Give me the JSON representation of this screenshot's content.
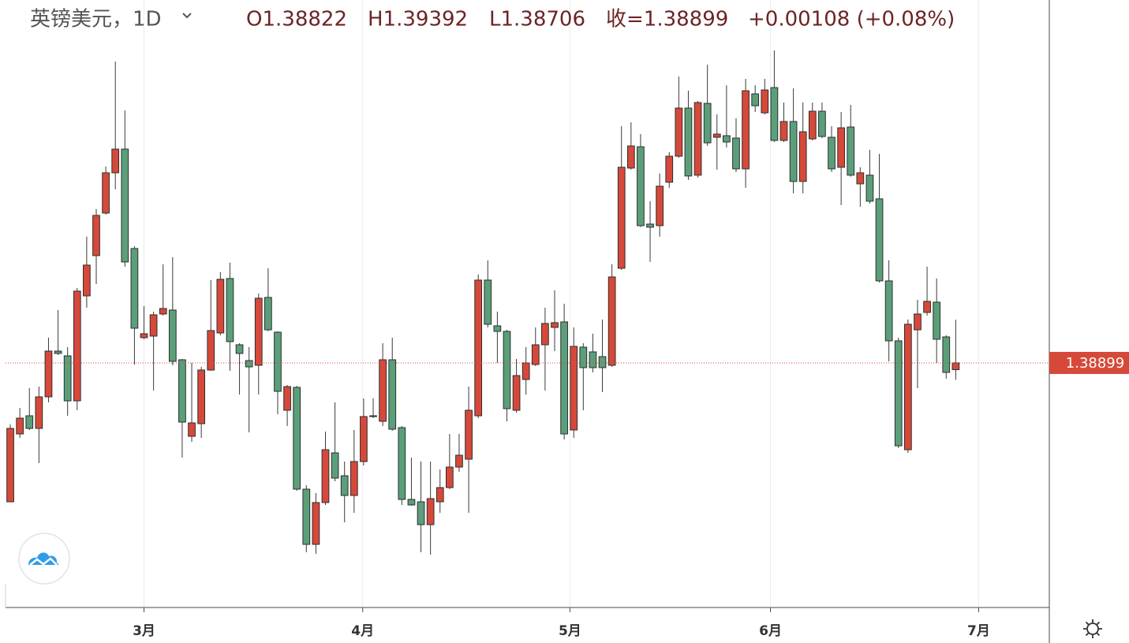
{
  "chart_data": {
    "type": "candlestick",
    "title": "英镑美元，1D",
    "legend": [
      "O1.38822",
      "H1.39392",
      "L1.38706",
      "收=1.38899",
      "+0.00108 (+0.08%)"
    ],
    "up_color": "#d6493a",
    "down_color": "#5b9f7a",
    "last_price": 1.38899,
    "xlim": [
      -0.5,
      108.8
    ],
    "ylim": [
      1.36109,
      1.43039
    ],
    "xticks": [
      {
        "value": 14.0,
        "label": "3月"
      },
      {
        "value": 36.9,
        "label": "4月"
      },
      {
        "value": 58.6,
        "label": "5月"
      },
      {
        "value": 79.6,
        "label": "6月"
      },
      {
        "value": 101.4,
        "label": "7月"
      }
    ],
    "grid": true,
    "open": [
      1.37315,
      1.38089,
      1.38296,
      1.38152,
      1.38512,
      1.39034,
      1.3898,
      1.38467,
      1.39664,
      1.40123,
      1.40609,
      1.41068,
      1.41338,
      1.40204,
      1.39187,
      1.39205,
      1.39457,
      1.39502,
      1.38935,
      1.38062,
      1.38206,
      1.38818,
      1.39241,
      1.39862,
      1.39106,
      1.38926,
      1.38872,
      1.39646,
      1.3925,
      1.38359,
      1.3862,
      1.37459,
      1.36829,
      1.37306,
      1.37873,
      1.37612,
      1.37387,
      1.37774,
      1.38296,
      1.38233,
      1.38935,
      1.38161,
      1.37342,
      1.37315,
      1.37054,
      1.37315,
      1.37477,
      1.37711,
      1.37801,
      1.38296,
      1.39844,
      1.39322,
      1.39259,
      1.38359,
      1.3871,
      1.38881,
      1.39106,
      1.39304,
      1.39367,
      1.38134,
      1.39079,
      1.39025,
      1.38971,
      1.38872,
      1.39979,
      1.41122,
      1.41365,
      1.40483,
      1.40465,
      1.4096,
      1.41257,
      1.41806,
      1.41041,
      1.4186,
      1.41473,
      1.41491,
      1.41464,
      1.41113,
      1.41968,
      1.41752,
      1.4204,
      1.41437,
      1.41653,
      1.40969,
      1.41455,
      1.4177,
      1.41473,
      1.41131,
      1.4159,
      1.40942,
      1.41041,
      1.40771,
      1.39835,
      1.39151,
      1.37909,
      1.39277,
      1.39475,
      1.39592,
      1.39196,
      1.38822
    ],
    "high": [
      1.38197,
      1.38386,
      1.38611,
      1.38629,
      1.39187,
      1.39502,
      1.39079,
      1.39754,
      1.40339,
      1.40654,
      1.4114,
      1.42337,
      1.41779,
      1.40231,
      1.39547,
      1.39484,
      1.40024,
      1.40105,
      1.38944,
      1.38899,
      1.38854,
      1.39844,
      1.39934,
      1.40042,
      1.39124,
      1.39079,
      1.39691,
      1.39979,
      1.39259,
      1.38647,
      1.38638,
      1.37504,
      1.37414,
      1.38116,
      1.38449,
      1.37774,
      1.38134,
      1.38494,
      1.38494,
      1.39124,
      1.39187,
      1.38179,
      1.37819,
      1.37774,
      1.37774,
      1.37684,
      1.38089,
      1.38089,
      1.38629,
      1.39907,
      1.40069,
      1.39484,
      1.39277,
      1.38944,
      1.39079,
      1.39304,
      1.39529,
      1.39727,
      1.39574,
      1.39304,
      1.39124,
      1.39232,
      1.39394,
      1.40024,
      1.41599,
      1.41644,
      1.41509,
      1.40744,
      1.41059,
      1.41302,
      1.42166,
      1.42004,
      1.41887,
      1.42301,
      1.41734,
      1.42067,
      1.41689,
      1.42139,
      1.42067,
      1.42139,
      1.42463,
      1.41869,
      1.42031,
      1.41869,
      1.41869,
      1.41869,
      1.41599,
      1.41761,
      1.41842,
      1.41131,
      1.41329,
      1.41284,
      1.40069,
      1.39187,
      1.39394,
      1.39619,
      1.39997,
      1.39862,
      1.39214,
      1.39392
    ],
    "low": [
      1.37315,
      1.38044,
      1.38134,
      1.37756,
      1.38449,
      1.38989,
      1.38296,
      1.38359,
      1.39529,
      1.39799,
      1.40591,
      1.40879,
      1.39997,
      1.38881,
      1.39169,
      1.38584,
      1.39439,
      1.38872,
      1.37819,
      1.37999,
      1.38044,
      1.38809,
      1.39214,
      1.38809,
      1.38539,
      1.38107,
      1.38539,
      1.39259,
      1.38314,
      1.38179,
      1.37441,
      1.36739,
      1.36721,
      1.37279,
      1.37549,
      1.37081,
      1.37189,
      1.37729,
      1.38269,
      1.38179,
      1.38125,
      1.37279,
      1.3727,
      1.36739,
      1.36712,
      1.37189,
      1.37459,
      1.37657,
      1.37189,
      1.38269,
      1.39304,
      1.38899,
      1.38233,
      1.38332,
      1.38539,
      1.38863,
      1.38584,
      1.39034,
      1.38026,
      1.38044,
      1.38359,
      1.38791,
      1.38566,
      1.38854,
      1.39961,
      1.41104,
      1.40447,
      1.40051,
      1.40339,
      1.40897,
      1.41239,
      1.40987,
      1.41014,
      1.41374,
      1.41104,
      1.41356,
      1.41077,
      1.40897,
      1.41761,
      1.41734,
      1.41419,
      1.41419,
      1.40834,
      1.40834,
      1.41437,
      1.41464,
      1.41077,
      1.40699,
      1.41023,
      1.40681,
      1.40717,
      1.39817,
      1.38917,
      1.37927,
      1.37873,
      1.38611,
      1.39439,
      1.38899,
      1.38719,
      1.38706
    ],
    "close": [
      1.38152,
      1.38269,
      1.38152,
      1.38512,
      1.39034,
      1.39007,
      1.38467,
      1.39718,
      1.40015,
      1.40582,
      1.41068,
      1.41338,
      1.40051,
      1.39295,
      1.39232,
      1.39448,
      1.3952,
      1.38917,
      1.38224,
      1.38215,
      1.38818,
      1.39268,
      1.39853,
      1.39142,
      1.39007,
      1.38854,
      1.39637,
      1.39277,
      1.38575,
      1.38629,
      1.37459,
      1.36829,
      1.37306,
      1.37909,
      1.37585,
      1.37387,
      1.37774,
      1.38287,
      1.38287,
      1.38935,
      1.38143,
      1.37342,
      1.37279,
      1.37054,
      1.37351,
      1.37477,
      1.37711,
      1.37846,
      1.38359,
      1.39844,
      1.3934,
      1.39259,
      1.38377,
      1.38755,
      1.38899,
      1.39106,
      1.39349,
      1.39358,
      1.38089,
      1.39088,
      1.38845,
      1.38845,
      1.38845,
      1.3988,
      1.41131,
      1.41374,
      1.40465,
      1.40447,
      1.40915,
      1.41257,
      1.41806,
      1.41032,
      1.41869,
      1.4141,
      1.41509,
      1.41419,
      1.41113,
      1.42004,
      1.41833,
      1.42013,
      1.41437,
      1.41653,
      1.40969,
      1.41536,
      1.4177,
      1.41482,
      1.41113,
      1.41581,
      1.41041,
      1.41068,
      1.40744,
      1.39835,
      1.39151,
      1.37954,
      1.3934,
      1.39457,
      1.39601,
      1.39169,
      1.38791,
      1.38899
    ]
  }
}
